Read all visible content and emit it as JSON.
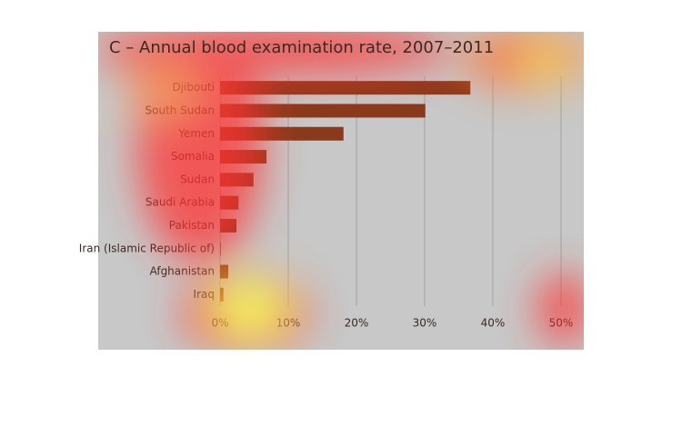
{
  "chart_data": {
    "type": "bar",
    "orientation": "horizontal",
    "title": "C – Annual blood examination rate, 2007–2011",
    "categories": [
      "Djibouti",
      "South Sudan",
      "Yemen",
      "Somalia",
      "Sudan",
      "Saudi Arabia",
      "Pakistan",
      "Iran (Islamic Republic of)",
      "Afghanistan",
      "Iraq"
    ],
    "values": [
      36.7,
      30.1,
      18.1,
      6.8,
      4.9,
      2.7,
      2.4,
      0.1,
      1.2,
      0.5
    ],
    "color": "#8a3a1c",
    "xlim": [
      0,
      50
    ],
    "xticks": [
      {
        "value": 0,
        "label": "0%"
      },
      {
        "value": 10,
        "label": "10%"
      },
      {
        "value": 20,
        "label": "20%"
      },
      {
        "value": 30,
        "label": "30%"
      },
      {
        "value": 40,
        "label": "40%"
      },
      {
        "value": 50,
        "label": "50%"
      }
    ],
    "grid": true
  }
}
